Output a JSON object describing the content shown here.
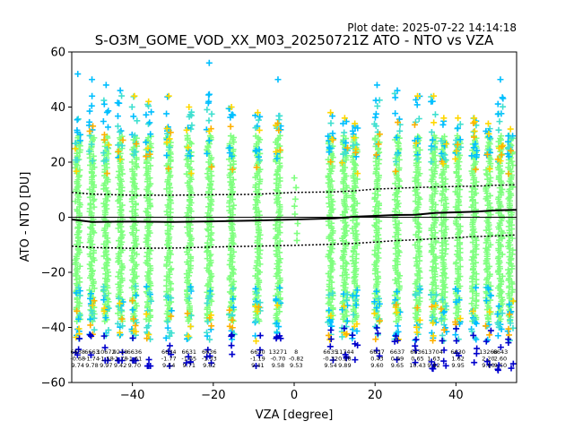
{
  "chart_data": {
    "type": "scatter",
    "plot_date": "Plot date: 2025-07-22 14:14:18",
    "title": "S-O3M_GOME_VOD_XX_M03_20250721Z ATO - NTO vs VZA",
    "xlabel": "VZA [degree]",
    "ylabel": "ATO - NTO [DU]",
    "xlim": [
      -55,
      55
    ],
    "ylim": [
      -60,
      60
    ],
    "xticks": [
      -40,
      -20,
      0,
      20,
      40
    ],
    "yticks": [
      -60,
      -40,
      -20,
      0,
      20,
      40,
      60
    ],
    "xtick_labels": [
      "−40",
      "−20",
      "0",
      "20",
      "40"
    ],
    "ytick_labels": [
      "−60",
      "−40",
      "−20",
      "0",
      "20",
      "40",
      "60"
    ],
    "grid": false,
    "legend": "none",
    "colors": {
      "dense": "#7fff7f",
      "medium": "#40e0d0",
      "light_blue": "#00bfff",
      "yellow": "#ffd700",
      "gold": "#ffb000",
      "dark_blue": "#0000cc",
      "mean_line": "#000000"
    },
    "columns": [
      {
        "vza": -53.5,
        "spread": [
          -50,
          52
        ],
        "count": "6638",
        "mean": "-0.68",
        "std": "9.74"
      },
      {
        "vza": -50.0,
        "spread": [
          -50,
          50
        ],
        "count": "6663",
        "mean": "-1.74",
        "std": "9.78"
      },
      {
        "vza": -46.5,
        "spread": [
          -52,
          48
        ],
        "count": "10672",
        "mean": "-1.58",
        "std": "9.97"
      },
      {
        "vza": -43.0,
        "spread": [
          -52,
          46
        ],
        "count": "9218",
        "mean": "-1.78",
        "std": "9.42"
      },
      {
        "vza": -39.5,
        "spread": [
          -52,
          44
        ],
        "count": "6636",
        "mean": "-1.61",
        "std": "9.70"
      },
      {
        "vza": -36.0,
        "spread": [
          -54,
          42
        ],
        "count": "",
        "mean": "",
        "std": ""
      },
      {
        "vza": -31.0,
        "spread": [
          -54,
          44
        ],
        "count": "6634",
        "mean": "-1.77",
        "std": "9.54"
      },
      {
        "vza": -26.0,
        "spread": [
          -54,
          40
        ],
        "count": "6631",
        "mean": "-1.65",
        "std": "9.71"
      },
      {
        "vza": -21.0,
        "spread": [
          -56,
          56
        ],
        "count": "6636",
        "mean": "-1.33",
        "std": "9.62"
      },
      {
        "vza": -15.5,
        "spread": [
          -58,
          40
        ],
        "count": "",
        "mean": "",
        "std": ""
      },
      {
        "vza": -9.0,
        "spread": [
          -54,
          38
        ],
        "count": "6630",
        "mean": "-1.19",
        "std": "9.41"
      },
      {
        "vza": -4.0,
        "spread": [
          -44,
          50
        ],
        "count": "13271",
        "mean": "-0.70",
        "std": "9.58"
      },
      {
        "vza": 0.5,
        "spread": [
          -10,
          16
        ],
        "count": "8",
        "mean": "-0.82",
        "std": "9.53"
      },
      {
        "vza": 9.0,
        "spread": [
          -56,
          38
        ],
        "count": "6635",
        "mean": "-0.32",
        "std": "9.54"
      },
      {
        "vza": 12.5,
        "spread": [
          -58,
          36
        ],
        "count": "11744",
        "mean": "0.28",
        "std": "9.89"
      },
      {
        "vza": 15.0,
        "spread": [
          -56,
          34
        ],
        "count": "",
        "mean": "",
        "std": ""
      },
      {
        "vza": 20.5,
        "spread": [
          -56,
          48
        ],
        "count": "6637",
        "mean": "0.43",
        "std": "9.60"
      },
      {
        "vza": 25.5,
        "spread": [
          -56,
          46
        ],
        "count": "6637",
        "mean": "0.99",
        "std": "9.65"
      },
      {
        "vza": 30.5,
        "spread": [
          -56,
          44
        ],
        "count": "6636",
        "mean": "0.65",
        "std": "10.43"
      },
      {
        "vza": 34.5,
        "spread": [
          -56,
          44
        ],
        "count": "13704",
        "mean": "1.63",
        "std": "9.82"
      },
      {
        "vza": 37.0,
        "spread": [
          -56,
          36
        ],
        "count": "",
        "mean": "",
        "std": ""
      },
      {
        "vza": 40.5,
        "spread": [
          -56,
          36
        ],
        "count": "6630",
        "mean": "1.62",
        "std": "9.95"
      },
      {
        "vza": 44.5,
        "spread": [
          -56,
          36
        ],
        "count": "",
        "mean": "",
        "std": ""
      },
      {
        "vza": 48.0,
        "spread": [
          -56,
          34
        ],
        "count": "13268",
        "mean": "2.20",
        "std": "9.80"
      },
      {
        "vza": 51.0,
        "spread": [
          -56,
          50
        ],
        "count": "6643",
        "mean": "2.60",
        "std": "9.50"
      },
      {
        "vza": 53.5,
        "spread": [
          -56,
          32
        ],
        "count": "",
        "mean": "",
        "std": ""
      }
    ],
    "mean_line": [
      [
        -55,
        -0.8
      ],
      [
        -50,
        -1.7
      ],
      [
        -40,
        -1.6
      ],
      [
        -30,
        -1.7
      ],
      [
        -20,
        -1.5
      ],
      [
        -10,
        -1.2
      ],
      [
        0,
        -0.8
      ],
      [
        10,
        -0.4
      ],
      [
        15,
        0.2
      ],
      [
        20,
        0.5
      ],
      [
        25,
        0.8
      ],
      [
        30,
        0.9
      ],
      [
        35,
        1.6
      ],
      [
        40,
        1.8
      ],
      [
        45,
        2.0
      ],
      [
        50,
        2.5
      ],
      [
        55,
        2.7
      ]
    ],
    "upper_sigma_line": [
      [
        -55,
        9.0
      ],
      [
        -50,
        8.4
      ],
      [
        -40,
        8.0
      ],
      [
        -30,
        8.0
      ],
      [
        -20,
        8.2
      ],
      [
        -10,
        8.3
      ],
      [
        0,
        9.0
      ],
      [
        10,
        9.2
      ],
      [
        15,
        9.6
      ],
      [
        20,
        10.2
      ],
      [
        25,
        10.5
      ],
      [
        30,
        10.8
      ],
      [
        35,
        11.0
      ],
      [
        40,
        11.2
      ],
      [
        45,
        11.3
      ],
      [
        50,
        11.6
      ],
      [
        55,
        11.8
      ]
    ],
    "lower_sigma_line": [
      [
        -55,
        -10.5
      ],
      [
        -50,
        -11.0
      ],
      [
        -40,
        -11.3
      ],
      [
        -30,
        -11.2
      ],
      [
        -20,
        -10.8
      ],
      [
        -10,
        -10.5
      ],
      [
        0,
        -10.2
      ],
      [
        10,
        -9.8
      ],
      [
        15,
        -9.5
      ],
      [
        20,
        -9.0
      ],
      [
        25,
        -8.5
      ],
      [
        30,
        -8.2
      ],
      [
        35,
        -7.8
      ],
      [
        40,
        -7.4
      ],
      [
        45,
        -7.0
      ],
      [
        50,
        -6.8
      ],
      [
        55,
        -6.4
      ]
    ]
  }
}
